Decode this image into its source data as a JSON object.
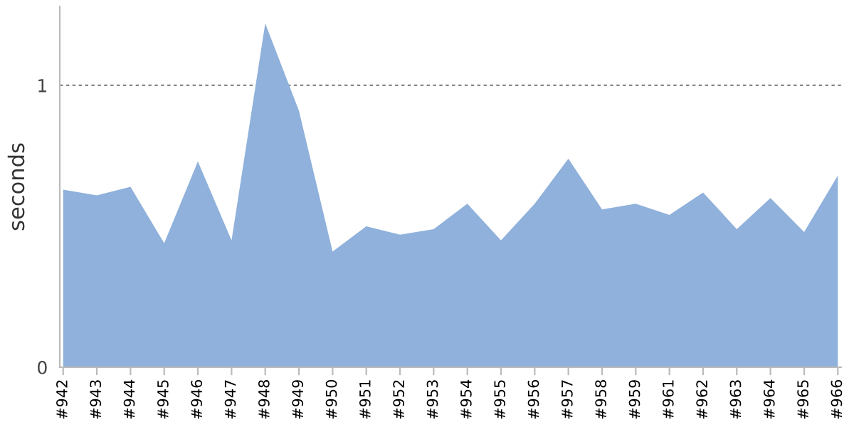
{
  "chart_data": {
    "type": "area",
    "ylabel": "seconds",
    "categories": [
      "#942",
      "#943",
      "#944",
      "#945",
      "#946",
      "#947",
      "#948",
      "#949",
      "#950",
      "#951",
      "#952",
      "#953",
      "#954",
      "#955",
      "#956",
      "#957",
      "#958",
      "#959",
      "#961",
      "#962",
      "#963",
      "#964",
      "#965",
      "#966"
    ],
    "series": [
      {
        "color": "#8fb1db",
        "values": [
          0.63,
          0.61,
          0.64,
          0.44,
          0.73,
          0.45,
          1.22,
          0.91,
          0.41,
          0.5,
          0.47,
          0.49,
          0.58,
          0.45,
          0.58,
          0.74,
          0.56,
          0.58,
          0.54,
          0.62,
          0.49,
          0.6,
          0.48,
          0.68
        ]
      }
    ],
    "ylim": [
      0,
      1.28
    ],
    "yticks": [
      0,
      1
    ],
    "grid": "y"
  }
}
